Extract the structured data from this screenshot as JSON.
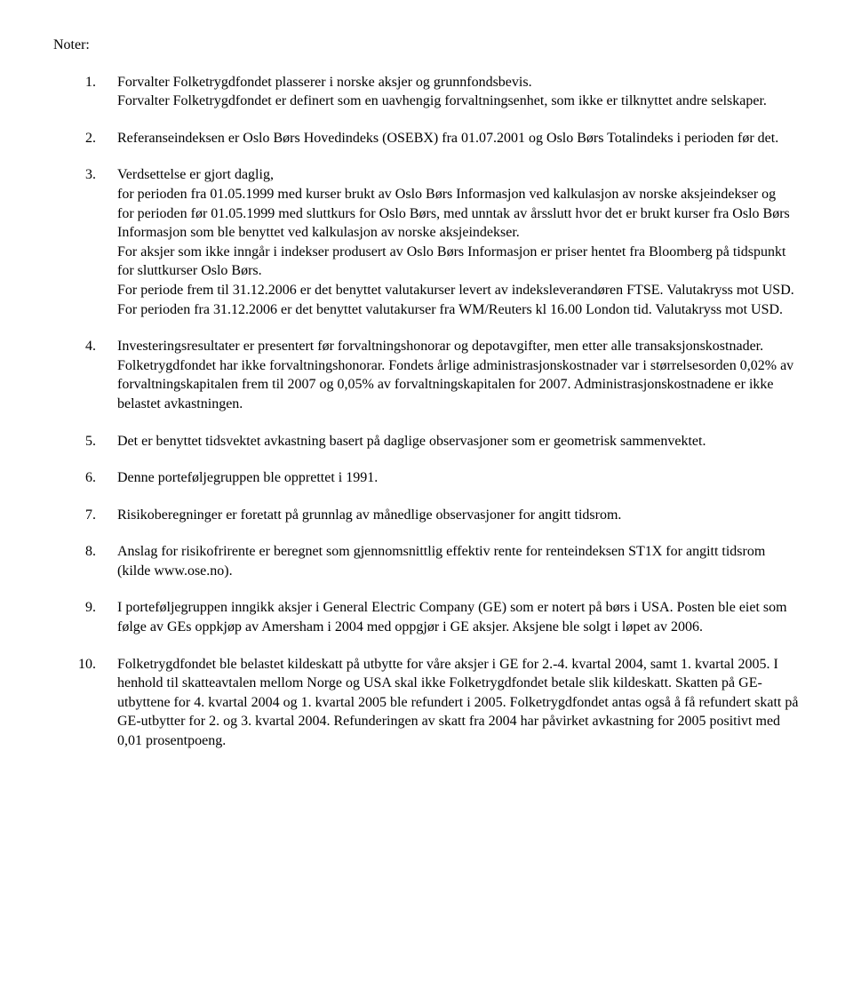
{
  "heading": "Noter:",
  "notes": [
    {
      "num": "1.",
      "paras": [
        "Forvalter Folketrygdfondet plasserer i norske aksjer og grunnfondsbevis.",
        "Forvalter Folketrygdfondet er definert som en uavhengig forvaltningsenhet, som ikke er tilknyttet andre selskaper."
      ]
    },
    {
      "num": "2.",
      "paras": [
        "Referanseindeksen er Oslo Børs Hovedindeks (OSEBX) fra 01.07.2001 og Oslo Børs Totalindeks i perioden før det."
      ]
    },
    {
      "num": "3.",
      "paras": [
        "Verdsettelse er gjort daglig,",
        "for perioden fra 01.05.1999 med kurser brukt av Oslo Børs Informasjon ved kalkulasjon av norske aksjeindekser og",
        "for perioden før 01.05.1999 med sluttkurs for Oslo Børs, med unntak av årsslutt hvor det er brukt kurser fra Oslo Børs Informasjon som ble benyttet ved kalkulasjon av norske aksjeindekser.",
        "For aksjer som ikke inngår i indekser produsert av Oslo Børs Informasjon er priser hentet fra Bloomberg på tidspunkt for sluttkurser Oslo Børs.",
        "For periode frem til 31.12.2006 er det benyttet valutakurser levert av indeksleverandøren FTSE. Valutakryss mot USD.",
        "For perioden fra 31.12.2006 er det benyttet valutakurser fra WM/Reuters kl 16.00 London tid. Valutakryss mot USD."
      ]
    },
    {
      "num": "4.",
      "paras": [
        "Investeringsresultater er presentert før forvaltningshonorar og depotavgifter, men etter alle transaksjonskostnader. Folketrygdfondet har ikke forvaltningshonorar. Fondets årlige administrasjonskostnader var i størrelsesorden 0,02% av forvaltningskapitalen frem til 2007 og 0,05% av forvaltningskapitalen  for 2007. Administrasjonskostnadene er ikke belastet avkastningen."
      ]
    },
    {
      "num": "5.",
      "paras": [
        "Det er benyttet tidsvektet avkastning basert på daglige observasjoner som er geometrisk sammenvektet."
      ]
    },
    {
      "num": "6.",
      "paras": [
        "Denne porteføljegruppen ble opprettet i 1991."
      ]
    },
    {
      "num": "7.",
      "paras": [
        "Risikoberegninger er foretatt på grunnlag av månedlige observasjoner for angitt tidsrom."
      ]
    },
    {
      "num": "8.",
      "paras": [
        "Anslag for risikofrirente er beregnet som gjennomsnittlig effektiv rente for renteindeksen ST1X for angitt tidsrom (kilde www.ose.no)."
      ]
    },
    {
      "num": "9.",
      "paras": [
        "I porteføljegruppen inngikk aksjer i General Electric Company (GE) som er notert på børs i USA. Posten ble eiet som følge av GEs oppkjøp av Amersham i 2004 med oppgjør i GE aksjer. Aksjene ble solgt i løpet av 2006."
      ]
    },
    {
      "num": "10.",
      "paras": [
        "Folketrygdfondet ble belastet kildeskatt på utbytte for våre aksjer i GE for 2.-4. kvartal 2004, samt 1. kvartal  2005. I henhold til skatteavtalen mellom Norge og USA skal ikke Folketrygdfondet betale slik kildeskatt. Skatten på GE-utbyttene for 4. kvartal 2004 og 1. kvartal 2005 ble refundert i 2005. Folketrygdfondet antas også å få refundert skatt på GE-utbytter for 2. og 3. kvartal 2004. Refunderingen av skatt fra 2004 har påvirket avkastning for 2005 positivt med 0,01 prosentpoeng."
      ]
    }
  ]
}
